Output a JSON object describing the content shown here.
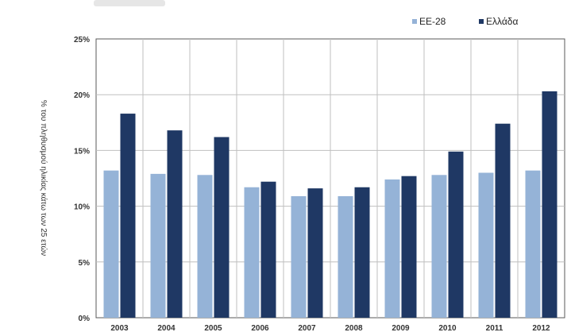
{
  "colors": {
    "ee28": "#95b3d7",
    "greece": "#1f3864",
    "grid": "#bfbfbf",
    "axis": "#595959"
  },
  "chart_data": {
    "type": "bar",
    "title": "",
    "xlabel": "",
    "ylabel": "% του πληθυσμού ηλικίας κάτω των 25 ετών",
    "ylim": [
      0,
      25
    ],
    "yticks": [
      0,
      5,
      10,
      15,
      20,
      25
    ],
    "ytick_labels": [
      "0%",
      "5%",
      "10%",
      "15%",
      "20%",
      "25%"
    ],
    "grid": true,
    "legend_position": "top-right",
    "categories": [
      "2003",
      "2004",
      "2005",
      "2006",
      "2007",
      "2008",
      "2009",
      "2010",
      "2011",
      "2012"
    ],
    "series": [
      {
        "name": "ΕΕ-28",
        "color": "#95b3d7",
        "values": [
          13.2,
          12.9,
          12.8,
          11.7,
          10.9,
          10.9,
          12.4,
          12.8,
          13.0,
          13.2
        ]
      },
      {
        "name": "Ελλάδα",
        "color": "#1f3864",
        "values": [
          18.3,
          16.8,
          16.2,
          12.2,
          11.6,
          11.7,
          12.7,
          14.9,
          17.4,
          20.3
        ]
      }
    ]
  }
}
